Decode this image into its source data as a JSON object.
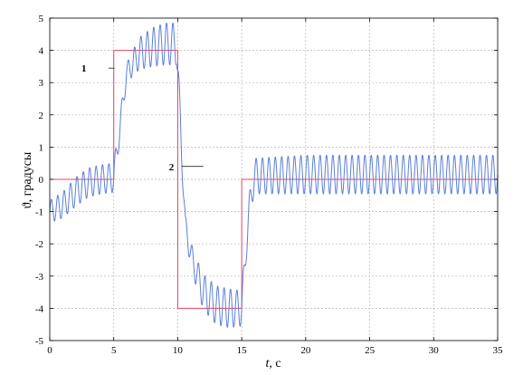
{
  "chart_data": {
    "type": "line",
    "title": "",
    "xlabel": "t, c",
    "ylabel": "ϑ, градусы",
    "xlim": [
      0,
      35
    ],
    "ylim": [
      -5,
      5
    ],
    "grid": true,
    "x_ticks": [
      "0",
      "5",
      "10",
      "15",
      "20",
      "25",
      "30",
      "35"
    ],
    "y_ticks": [
      "5",
      "4",
      "3",
      "2",
      "1",
      "0",
      "-1",
      "-2",
      "-3",
      "-4",
      "-5"
    ],
    "annotations": [
      {
        "text": "1",
        "x": 4.6,
        "y": 3.45
      },
      {
        "text": "2",
        "x": 12.0,
        "y": 0.4
      }
    ],
    "series": [
      {
        "name": "",
        "label_id": "1",
        "color": "#e8416a",
        "style": "step",
        "x": [
          0,
          5,
          5,
          10,
          10,
          15,
          15,
          35
        ],
        "y": [
          0,
          0,
          4,
          4,
          -4,
          -4,
          0,
          0
        ]
      },
      {
        "name": "",
        "label_id": "2",
        "color": "#5b7fd6",
        "style": "oscillating",
        "oscillation_period": 0.5,
        "x": [
          0,
          1,
          2,
          3,
          4,
          5,
          6,
          7,
          8,
          9,
          9.9,
          10.6,
          11.2,
          12,
          13,
          14,
          15,
          15.6,
          16,
          20,
          25,
          30,
          35
        ],
        "y": [
          -1.0,
          -0.8,
          -0.4,
          -0.1,
          0.0,
          0.05,
          3.3,
          3.9,
          4.1,
          4.2,
          4.2,
          -1.5,
          -2.6,
          -3.5,
          -3.9,
          -4.0,
          -4.0,
          -0.8,
          0.1,
          0.15,
          0.15,
          0.15,
          0.15
        ],
        "amplitude": [
          0.35,
          0.4,
          0.45,
          0.45,
          0.45,
          0.45,
          0.3,
          0.5,
          0.6,
          0.65,
          0.65,
          0.35,
          0.4,
          0.55,
          0.6,
          0.6,
          0.55,
          0.35,
          0.55,
          0.6,
          0.6,
          0.6,
          0.6
        ]
      }
    ]
  }
}
